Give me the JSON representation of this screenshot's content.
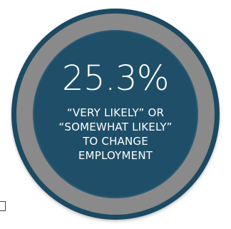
{
  "stat": {
    "value": "25.3%",
    "caption_lines": [
      "“VERY LIKELY” OR",
      "“SOMEWHAT LIKELY”",
      "TO CHANGE",
      "EMPLOYMENT"
    ]
  },
  "colors": {
    "outer_ring": "#1b4a62",
    "gray_ring": "#8a8a8a",
    "inner_disc": "#1f4f68",
    "text": "#ffffff"
  }
}
